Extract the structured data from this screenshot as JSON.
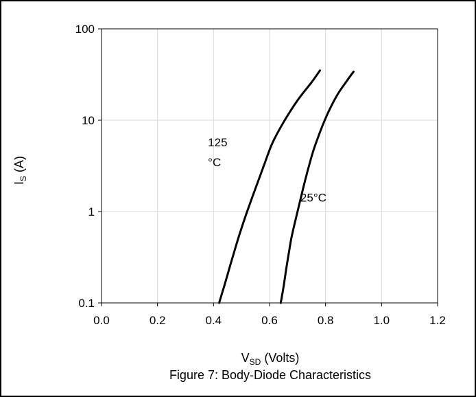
{
  "chart_data": {
    "type": "line",
    "title": "Figure 7: Body-Diode Characteristics",
    "xlabel": {
      "main": "V",
      "sub": "SD",
      "rest": " (Volts)"
    },
    "ylabel": {
      "main": "I",
      "sub": "S",
      "rest": " (A)"
    },
    "xlim": [
      0.0,
      1.2
    ],
    "ylim": [
      0.1,
      100
    ],
    "yscale": "log",
    "grid": true,
    "x_ticks": [
      0.0,
      0.2,
      0.4,
      0.6,
      0.8,
      1.0,
      1.2
    ],
    "x_tick_labels": [
      "0.0",
      "0.2",
      "0.4",
      "0.6",
      "0.8",
      "1.0",
      "1.2"
    ],
    "y_ticks": [
      0.1,
      1,
      10,
      100
    ],
    "y_tick_labels": [
      "0.1",
      "1",
      "10",
      "100"
    ],
    "series": [
      {
        "x": [
          0.42,
          0.44,
          0.46,
          0.48,
          0.5,
          0.52,
          0.55,
          0.58,
          0.61,
          0.65,
          0.7,
          0.75,
          0.78
        ],
        "y": [
          0.1,
          0.16,
          0.26,
          0.42,
          0.66,
          1.0,
          1.8,
          3.2,
          5.6,
          9.5,
          16.5,
          26.0,
          35.0
        ]
      },
      {
        "x": [
          0.64,
          0.65,
          0.66,
          0.67,
          0.68,
          0.7,
          0.72,
          0.74,
          0.76,
          0.8,
          0.84,
          0.88,
          0.9
        ],
        "y": [
          0.1,
          0.15,
          0.24,
          0.37,
          0.55,
          1.0,
          1.8,
          3.1,
          5.0,
          10.5,
          18.5,
          28.0,
          34.0
        ]
      }
    ],
    "annotations": [
      {
        "line1": "125",
        "line2": "°C",
        "anchor": [
          0.38,
          5.2
        ]
      },
      {
        "line1": "25°C",
        "anchor": [
          0.71,
          1.28
        ]
      }
    ],
    "colors": {
      "line": "#000000",
      "grid": "#d9d9d9",
      "axis": "#000000"
    }
  }
}
